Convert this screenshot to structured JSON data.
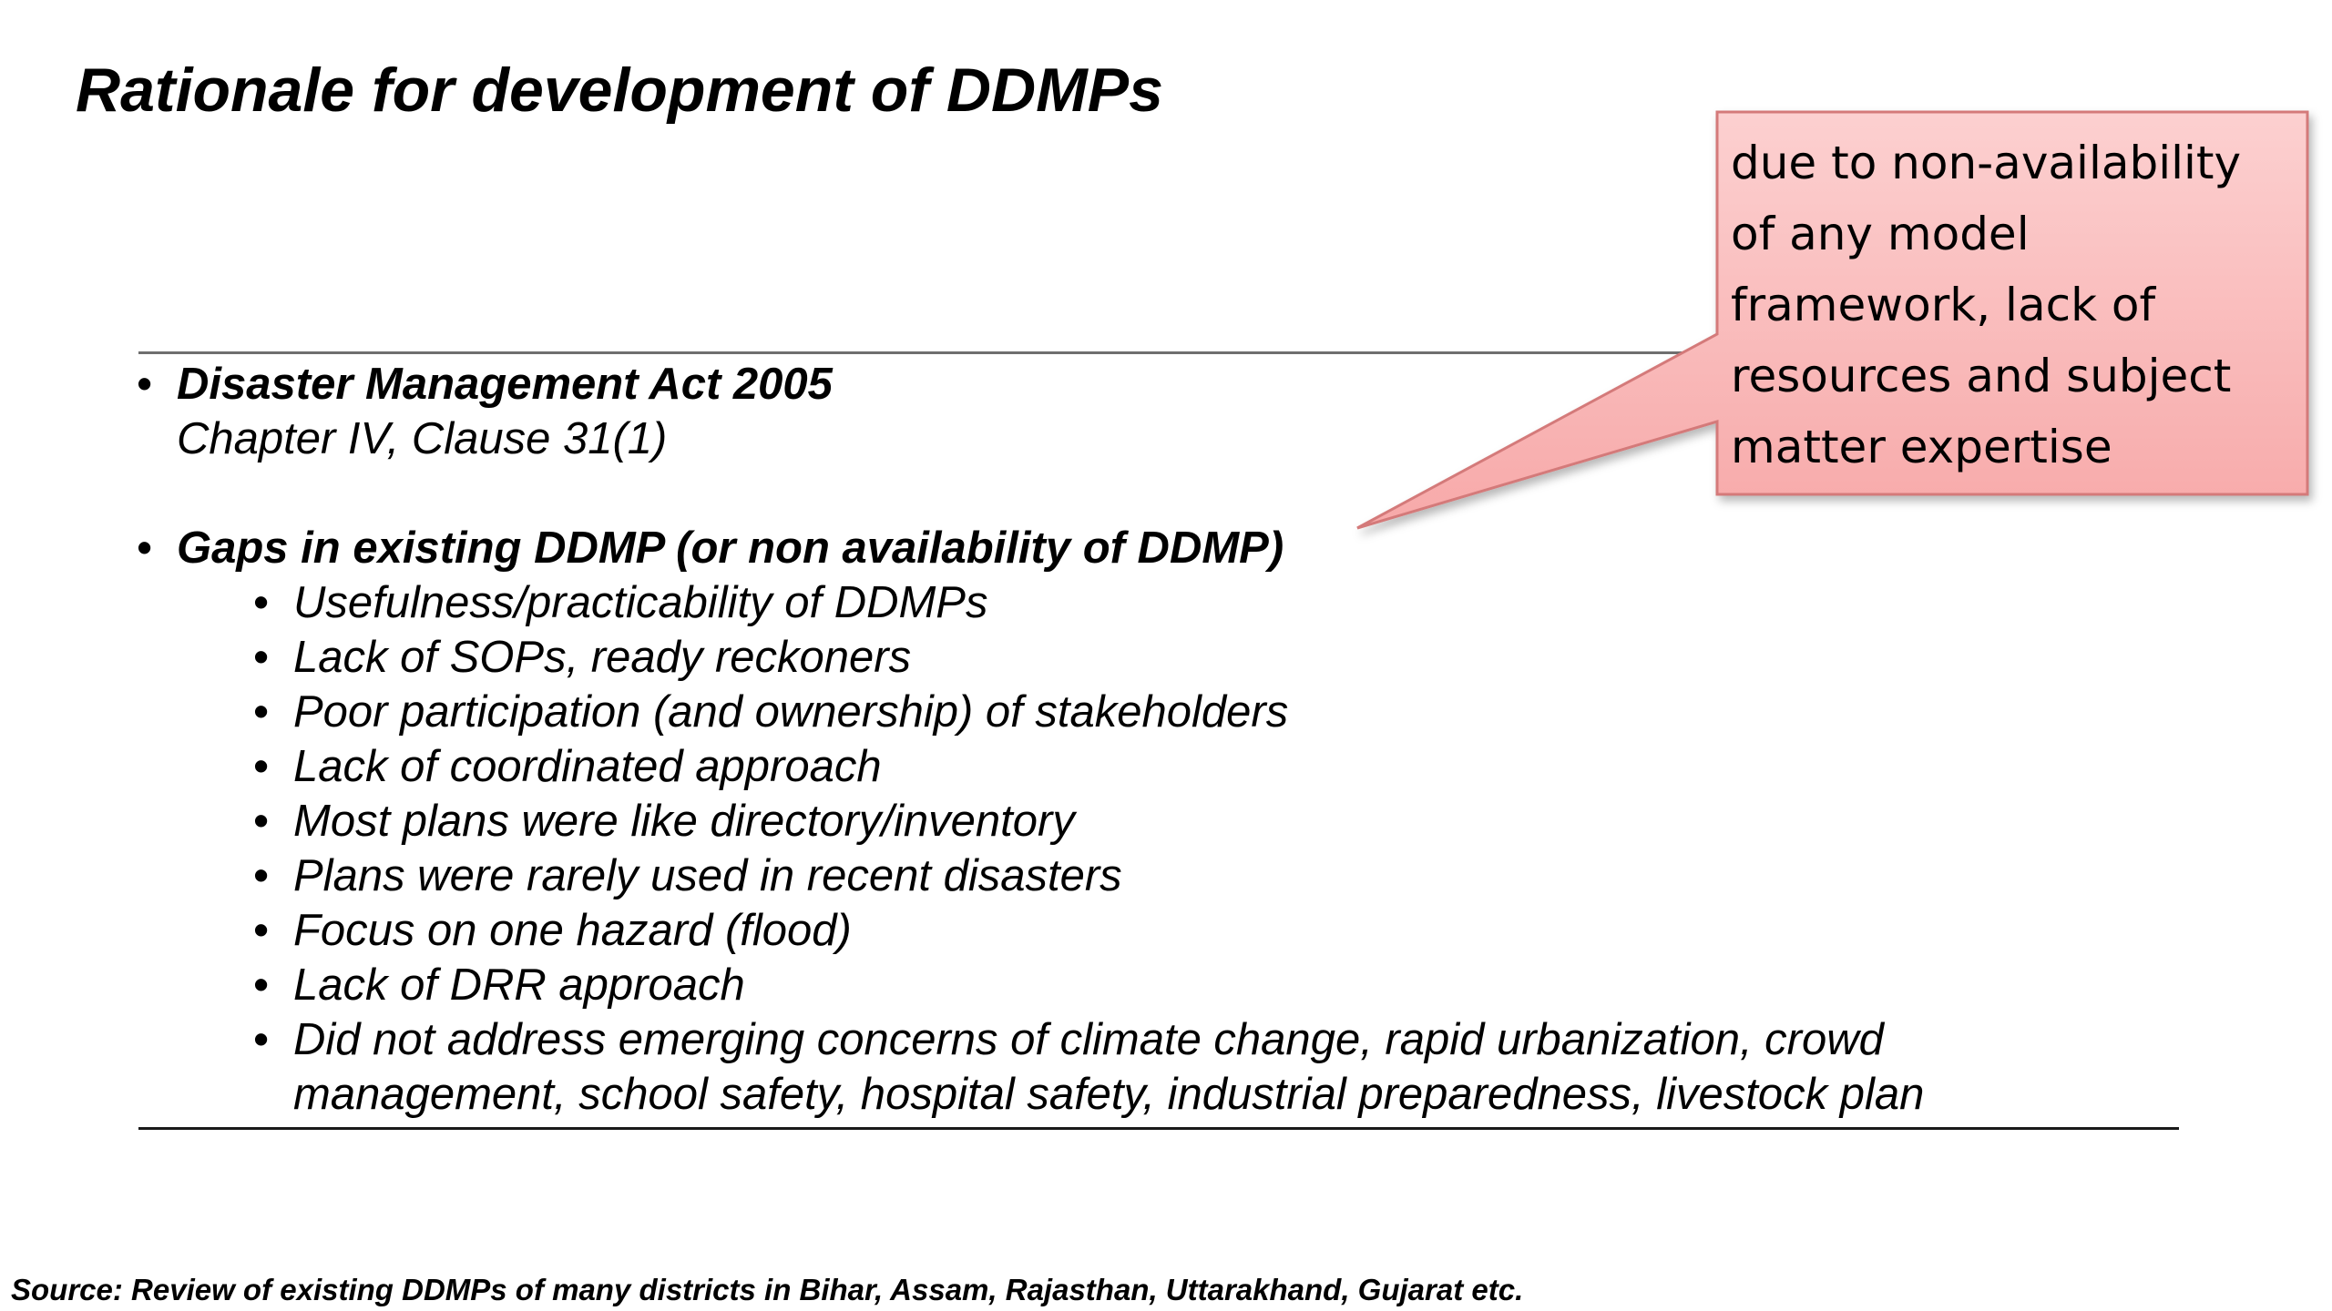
{
  "slide": {
    "title": "Rationale for development of DDMPs",
    "items": [
      {
        "heading": "Disaster Management Act 2005",
        "subtext": "Chapter IV, Clause 31(1)"
      },
      {
        "heading": "Gaps in existing DDMP (or non availability of DDMP)",
        "subitems": [
          "Usefulness/practicability of DDMPs",
          "Lack of SOPs, ready reckoners",
          "Poor participation (and ownership) of stakeholders",
          "Lack of coordinated approach",
          "Most plans were like directory/inventory",
          "Plans were rarely used in recent disasters",
          "Focus on one hazard (flood)",
          "Lack of DRR approach",
          "Did not address emerging concerns of climate change, rapid urbanization, crowd management, school safety, hospital safety, industrial preparedness, livestock plan"
        ]
      }
    ],
    "callout": {
      "text": "due to non-availability of any model framework, lack of resources and subject matter expertise",
      "fill_color": "#f9b8b8",
      "border_color": "#d47a7a"
    },
    "source": "Source:  Review of existing DDMPs of many districts in Bihar, Assam, Rajasthan, Uttarakhand, Gujarat etc."
  }
}
